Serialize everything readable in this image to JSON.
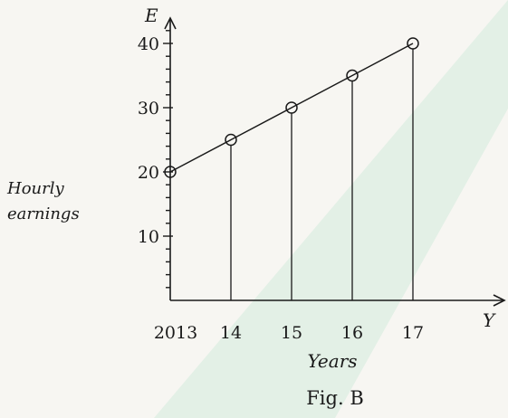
{
  "chart_data": {
    "type": "line",
    "title": "",
    "caption": "Fig. B",
    "x": [
      2013,
      2014,
      2015,
      2016,
      2017
    ],
    "x_tick_labels": [
      "2013",
      "14",
      "15",
      "16",
      "17"
    ],
    "series": [
      {
        "values": [
          20,
          25,
          30,
          35,
          40
        ]
      }
    ],
    "ylabel": "Hourly earnings",
    "ylabel_lines": [
      "Hourly",
      "earnings"
    ],
    "y_axis_symbol": "E",
    "xlabel": "Years",
    "x_axis_symbol": "Y",
    "y_tick_labels": [
      "10",
      "20",
      "30",
      "40"
    ],
    "y_ticks_minor": [
      12,
      14,
      16,
      18,
      22,
      24,
      26,
      28,
      32,
      34,
      36,
      38,
      40,
      42,
      44,
      46,
      48,
      50,
      52,
      54,
      56
    ],
    "ylim": [
      0,
      44
    ],
    "xlim": [
      2013,
      2018.4
    ],
    "markers": "open-circle",
    "drop_lines": true,
    "grid": false,
    "colors": {
      "ink": "#1a1a1a",
      "paper": "#f7f6f2",
      "watermark": "#e3f0e6"
    }
  }
}
